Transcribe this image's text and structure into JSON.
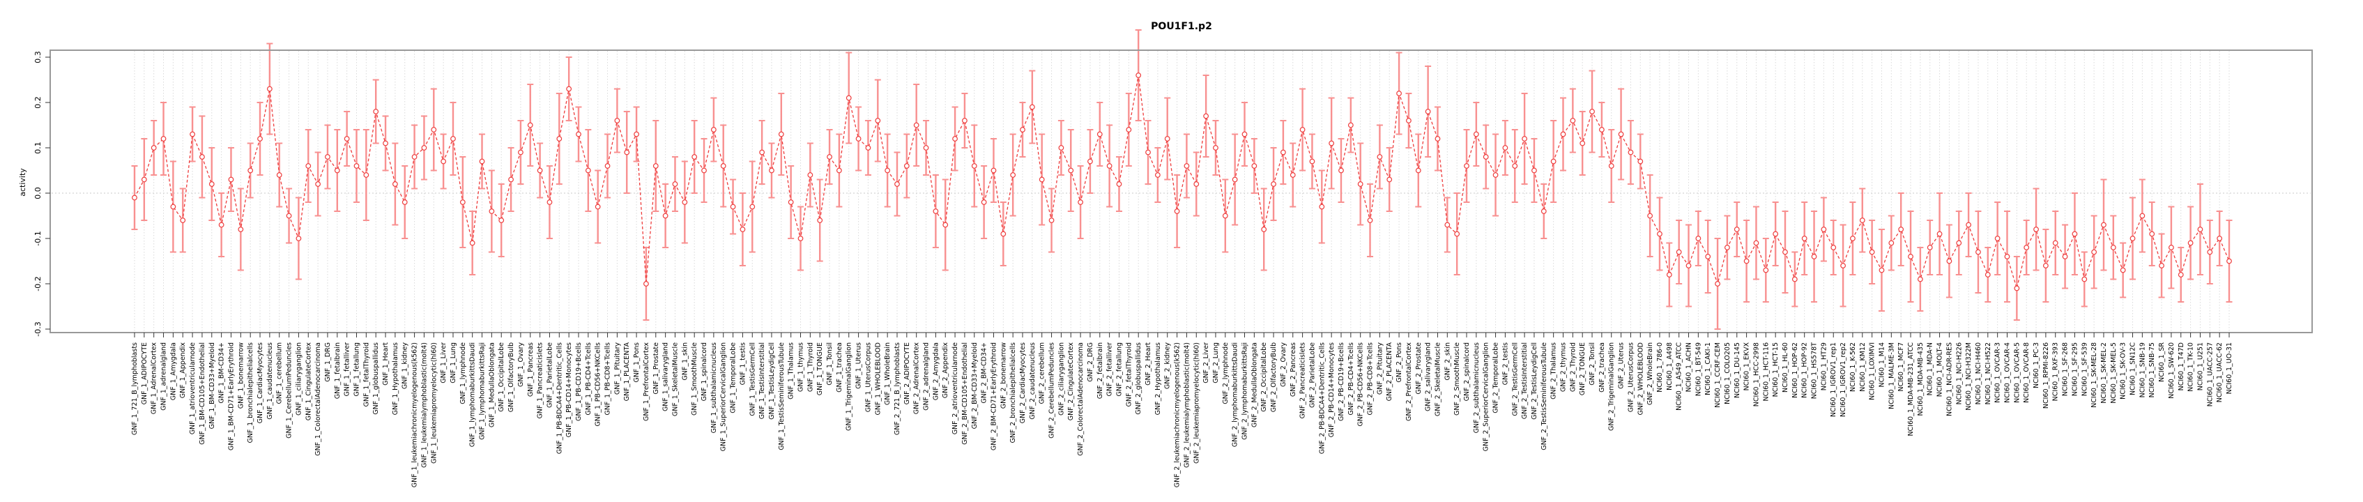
{
  "title": "POU1F1.p2",
  "chart_data": {
    "type": "line",
    "title": "POU1F1.p2",
    "xlabel": "",
    "ylabel": "activity",
    "ylim": [
      -0.3,
      0.3
    ],
    "y_ticks": [
      -0.3,
      -0.2,
      -0.1,
      0.0,
      0.1,
      0.2,
      0.3
    ],
    "y_tick_labels": [
      "-0.3",
      "-0.2",
      "-0.1",
      "0.0",
      "0.1",
      "0.2",
      "0.3"
    ],
    "legend": "none",
    "grid": "vertical dotted gridline per category; dotted horizontal line at 0.0",
    "marker": "open-circle",
    "line_style": "dashed",
    "error_bars": true,
    "colors": {
      "line": "#ee3b3b",
      "marker": "#ee3b3b",
      "error_bar": "#f89090",
      "grid": "#d9d9d9",
      "zero_line": "#d4d4d4",
      "border": "#999999",
      "text": "#000000",
      "background": "#ffffff"
    },
    "groups": [
      {
        "prefix": "GNF_1_",
        "items": [
          "721_B_lymphoblasts",
          "ADIPOCYTE",
          "AdrenalCortex",
          "adrenalgland",
          "Amygdala",
          "Appendix",
          "atrioventricularnode",
          "BM-CD105+Endothelial",
          "BM-CD33+Myeloid",
          "BM-CD34+",
          "BM-CD71+EarlyErythroid",
          "bonemarrow",
          "bronchialepithelialcells",
          "CardiacMyocytes",
          "caudatenucleus",
          "cerebellum",
          "CerebellumPeduncles",
          "ciliaryganglion",
          "CingulateCortex",
          "ColorectalAdenocarcinoma",
          "DRG",
          "fetalbrain",
          "fetalliver",
          "fetallung",
          "fetalThyroid",
          "globuspallidus",
          "Heart",
          "Hypothalamus",
          "kidney",
          "leukemiachronicmyelogenous(k562)",
          "leukemialymphoblastic(molt4)",
          "leukemiapromyelocytic(hl60)",
          "Liver",
          "Lung",
          "lymphnode",
          "lymphomaburkittsDaudi",
          "lymphomaburkittsRaji",
          "MedullaOblongata",
          "OccipitalLobe",
          "OlfactoryBulb",
          "Ovary",
          "Pancreas",
          "Pancreaticislets",
          "ParietalLobe",
          "PB-BDCA4+Dentritic_Cells",
          "PB-CD14+Monocytes",
          "PB-CD19+Bcells",
          "PB-CD4+Tcells",
          "PB-CD56+NKCells",
          "PB-CD8+Tcells",
          "Pituitary",
          "PLACENTA",
          "Pons",
          "PrefrontalCortex",
          "Prostate",
          "salivarygland",
          "SkeletalMuscle",
          "skin",
          "SmoothMuscle",
          "spinalcord",
          "subthalamicnucleus",
          "SuperiorCervicalGanglion",
          "TemporalLobe",
          "testis",
          "TestisGermCell",
          "TestisInterstitial",
          "TestisLeydigCell",
          "TestisSeminiferousTubule",
          "Thalamus",
          "thymus",
          "Thyroid",
          "TONGUE",
          "Tonsil",
          "trachea",
          "TrigeminalGanglion",
          "Uterus",
          "UterusCorpus",
          "WHOLEBLOOD",
          "WholeBrain"
        ]
      },
      {
        "prefix": "GNF_2_",
        "items": [
          "721_B_lymphoblasts",
          "ADIPOCYTE",
          "AdrenalCortex",
          "adrenalgland",
          "Amygdala",
          "Appendix",
          "atrioventricularnode",
          "BM-CD105+Endothelial",
          "BM-CD33+Myeloid",
          "BM-CD34+",
          "BM-CD71+EarlyErythroid",
          "bonemarrow",
          "bronchialepithelialcells",
          "CardiacMyocytes",
          "caudatenucleus",
          "cerebellum",
          "CerebellumPeduncles",
          "ciliaryganglion",
          "CingulateCortex",
          "ColorectalAdenocarcinoma",
          "DRG",
          "fetalbrain",
          "fetalliver",
          "fetallung",
          "fetalThyroid",
          "globuspallidus",
          "Heart",
          "Hypothalamus",
          "kidney",
          "leukemiachronicmyelogenous(k562)",
          "leukemialymphoblastic(molt4)",
          "leukemiapromyelocytic(hl60)",
          "Liver",
          "Lung",
          "lymphnode",
          "lymphomaburkittsDaudi",
          "lymphomaburkittsRaji",
          "MedullaOblongata",
          "OccipitalLobe",
          "OlfactoryBulb",
          "Ovary",
          "Pancreas",
          "Pancreaticislets",
          "ParietalLobe",
          "PB-BDCA4+Dentritic_Cells",
          "PB-CD14+Monocytes",
          "PB-CD19+Bcells",
          "PB-CD4+Tcells",
          "PB-CD56+NKCells",
          "PB-CD8+Tcells",
          "Pituitary",
          "PLACENTA",
          "Pons",
          "PrefrontalCortex",
          "Prostate",
          "salivarygland",
          "SkeletalMuscle",
          "skin",
          "SmoothMuscle",
          "spinalcord",
          "subthalamicnucleus",
          "SuperiorCervicalGanglion",
          "TemporalLobe",
          "testis",
          "TestisGermCell",
          "TestisInterstitial",
          "TestisLeydigCell",
          "TestisSeminiferousTubule",
          "Thalamus",
          "thymus",
          "Thyroid",
          "TONGUE",
          "Tonsil",
          "trachea",
          "TrigeminalGanglion",
          "Uterus",
          "UterusCorpus",
          "WHOLEBLOOD",
          "WholeBrain"
        ]
      },
      {
        "prefix": "NCI60_1_",
        "items": [
          "786-0",
          "A498",
          "A549_ATCC",
          "ACHN",
          "BT-549",
          "CAKI-1",
          "CCRF-CEM",
          "COLO205",
          "DU-145",
          "EKVX",
          "HCC-2998",
          "HCT-116",
          "HCT-15",
          "HL-60",
          "HOP-62",
          "HOP-92",
          "HS578T",
          "HT29",
          "IGROV1_rep1",
          "IGROV1_rep2",
          "K-562",
          "KM12",
          "LOXIMVI",
          "M14",
          "MALME-3M",
          "MCF7",
          "MDA-MB-231_ATCC",
          "MDA-MB-435",
          "MDA-N",
          "MOLT-4",
          "NCI-ADR-RES",
          "NCI-H226",
          "NCI-H322M",
          "NCI-H460",
          "NCI-H522",
          "OVCAR-3",
          "OVCAR-4",
          "OVCAR-5",
          "OVCAR-8",
          "PC-3",
          "RPMI-8226",
          "RXF-393",
          "SF-268",
          "SF-295",
          "SF-539",
          "SK-MEL-28",
          "SK-MEL-2",
          "SK-MEL-5",
          "SK-OV-3",
          "SN12C",
          "SNB-19",
          "SNB-75",
          "SR",
          "SW-620",
          "T47D",
          "TK-10",
          "U251",
          "UACC-257",
          "UACC-62",
          "UO-31"
        ]
      }
    ],
    "values": [
      -0.01,
      0.03,
      0.1,
      0.12,
      -0.03,
      -0.06,
      0.13,
      0.08,
      0.02,
      -0.07,
      0.03,
      -0.08,
      0.05,
      0.12,
      0.23,
      0.04,
      -0.05,
      -0.1,
      0.06,
      0.02,
      0.08,
      0.05,
      0.12,
      0.06,
      0.04,
      0.18,
      0.11,
      0.02,
      -0.02,
      0.08,
      0.1,
      0.14,
      0.07,
      0.12,
      -0.02,
      -0.11,
      0.07,
      -0.04,
      -0.06,
      0.03,
      0.09,
      0.15,
      0.05,
      -0.02,
      0.12,
      0.23,
      0.13,
      0.05,
      -0.03,
      0.06,
      0.16,
      0.09,
      0.13,
      -0.2,
      0.06,
      -0.05,
      0.02,
      -0.02,
      0.08,
      0.05,
      0.14,
      0.06,
      -0.03,
      -0.08,
      -0.03,
      0.09,
      0.05,
      0.13,
      -0.02,
      -0.1,
      0.04,
      -0.06,
      0.08,
      0.05,
      0.21,
      0.12,
      0.1,
      0.16,
      0.05,
      0.02,
      0.06,
      0.15,
      0.1,
      -0.04,
      -0.07,
      0.12,
      0.16,
      0.06,
      -0.02,
      0.05,
      -0.09,
      0.04,
      0.14,
      0.19,
      0.03,
      -0.06,
      0.1,
      0.05,
      -0.02,
      0.07,
      0.13,
      0.06,
      0.02,
      0.14,
      0.26,
      0.09,
      0.04,
      0.12,
      -0.04,
      0.06,
      0.02,
      0.17,
      0.1,
      -0.05,
      0.03,
      0.13,
      0.06,
      -0.08,
      0.02,
      0.09,
      0.04,
      0.14,
      0.07,
      -0.03,
      0.11,
      0.05,
      0.15,
      0.02,
      -0.06,
      0.08,
      0.03,
      0.22,
      0.16,
      0.05,
      0.18,
      0.12,
      -0.07,
      -0.09,
      0.06,
      0.13,
      0.08,
      0.04,
      0.1,
      0.06,
      0.12,
      0.05,
      -0.04,
      0.07,
      0.13,
      0.16,
      0.11,
      0.18,
      0.14,
      0.06,
      0.13,
      0.09,
      0.07,
      -0.05,
      -0.09,
      -0.18,
      -0.13,
      -0.16,
      -0.1,
      -0.14,
      -0.2,
      -0.12,
      -0.08,
      -0.15,
      -0.11,
      -0.17,
      -0.09,
      -0.13,
      -0.19,
      -0.1,
      -0.14,
      -0.08,
      -0.12,
      -0.16,
      -0.1,
      -0.06,
      -0.13,
      -0.17,
      -0.11,
      -0.08,
      -0.14,
      -0.19,
      -0.12,
      -0.09,
      -0.15,
      -0.11,
      -0.07,
      -0.13,
      -0.18,
      -0.1,
      -0.14,
      -0.21,
      -0.12,
      -0.08,
      -0.16,
      -0.11,
      -0.14,
      -0.09,
      -0.19,
      -0.13,
      -0.07,
      -0.12,
      -0.17,
      -0.1,
      -0.05,
      -0.09,
      -0.16,
      -0.12,
      -0.18,
      -0.11,
      -0.08,
      -0.13,
      -0.1,
      -0.15
    ],
    "errors": [
      0.07,
      0.09,
      0.06,
      0.08,
      0.1,
      0.07,
      0.06,
      0.09,
      0.08,
      0.07,
      0.07,
      0.09,
      0.06,
      0.08,
      0.1,
      0.07,
      0.06,
      0.09,
      0.08,
      0.07,
      0.07,
      0.09,
      0.06,
      0.08,
      0.1,
      0.07,
      0.06,
      0.09,
      0.08,
      0.07,
      0.07,
      0.09,
      0.06,
      0.08,
      0.1,
      0.07,
      0.06,
      0.09,
      0.08,
      0.07,
      0.07,
      0.09,
      0.06,
      0.08,
      0.1,
      0.07,
      0.06,
      0.09,
      0.08,
      0.07,
      0.07,
      0.09,
      0.06,
      0.08,
      0.1,
      0.07,
      0.06,
      0.09,
      0.08,
      0.07,
      0.07,
      0.09,
      0.06,
      0.08,
      0.1,
      0.07,
      0.06,
      0.09,
      0.08,
      0.07,
      0.07,
      0.09,
      0.06,
      0.08,
      0.1,
      0.07,
      0.06,
      0.09,
      0.08,
      0.07,
      0.07,
      0.09,
      0.06,
      0.08,
      0.1,
      0.07,
      0.06,
      0.09,
      0.08,
      0.07,
      0.07,
      0.09,
      0.06,
      0.08,
      0.1,
      0.07,
      0.06,
      0.09,
      0.08,
      0.07,
      0.07,
      0.09,
      0.06,
      0.08,
      0.1,
      0.07,
      0.06,
      0.09,
      0.08,
      0.07,
      0.07,
      0.09,
      0.06,
      0.08,
      0.1,
      0.07,
      0.06,
      0.09,
      0.08,
      0.07,
      0.07,
      0.09,
      0.06,
      0.08,
      0.1,
      0.07,
      0.06,
      0.09,
      0.08,
      0.07,
      0.07,
      0.09,
      0.06,
      0.08,
      0.1,
      0.07,
      0.06,
      0.09,
      0.08,
      0.07,
      0.07,
      0.09,
      0.06,
      0.08,
      0.1,
      0.07,
      0.06,
      0.09,
      0.08,
      0.07,
      0.07,
      0.09,
      0.06,
      0.08,
      0.1,
      0.07,
      0.06,
      0.09,
      0.08,
      0.07,
      0.07,
      0.09,
      0.06,
      0.08,
      0.1,
      0.07,
      0.06,
      0.09,
      0.08,
      0.07,
      0.07,
      0.09,
      0.06,
      0.08,
      0.1,
      0.07,
      0.06,
      0.09,
      0.08,
      0.07,
      0.07,
      0.09,
      0.06,
      0.08,
      0.1,
      0.07,
      0.06,
      0.09,
      0.08,
      0.07,
      0.07,
      0.09,
      0.06,
      0.08,
      0.1,
      0.07,
      0.06,
      0.09,
      0.08,
      0.07,
      0.07,
      0.09,
      0.06,
      0.08,
      0.1,
      0.07,
      0.06,
      0.09,
      0.08,
      0.07,
      0.07,
      0.09,
      0.06,
      0.08,
      0.1,
      0.07,
      0.06,
      0.09
    ]
  }
}
